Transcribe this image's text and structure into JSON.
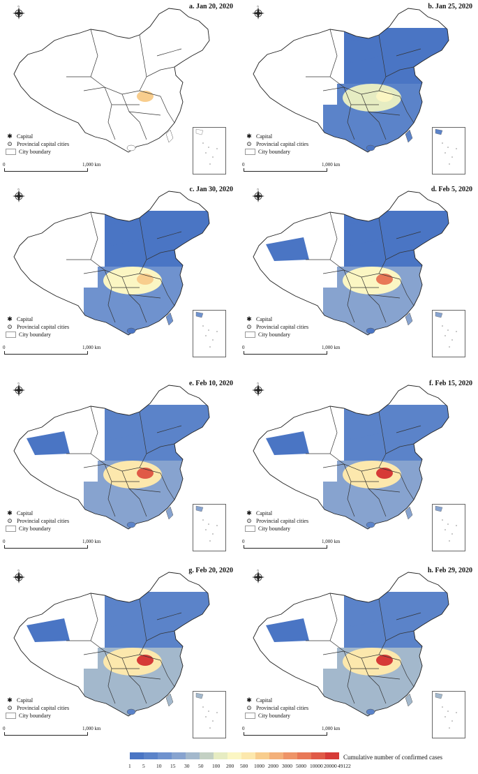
{
  "panels": [
    {
      "title": "a. Jan 20, 2020",
      "level": 0
    },
    {
      "title": "b. Jan 25, 2020",
      "level": 1
    },
    {
      "title": "c. Jan 30, 2020",
      "level": 2
    },
    {
      "title": "d. Feb 5, 2020",
      "level": 3
    },
    {
      "title": "e. Feb 10, 2020",
      "level": 4
    },
    {
      "title": "f. Feb 15, 2020",
      "level": 5
    },
    {
      "title": "g. Feb 20, 2020",
      "level": 6
    },
    {
      "title": "h. Feb 29, 2020",
      "level": 6
    }
  ],
  "legend": {
    "capital": "Capital",
    "provincial": "Provincial capital cities",
    "boundary": "City boundary",
    "scale_zero": "0",
    "scale_label": "1,000 km",
    "capital_symbol": "✱",
    "provincial_symbol": "⊙"
  },
  "compass": {
    "n": "N",
    "s": "S",
    "e": "E",
    "w": "W"
  },
  "colorbar": {
    "title": "Cumulative number of confirmed cases",
    "ticks": [
      "1",
      "5",
      "10",
      "15",
      "30",
      "50",
      "100",
      "200",
      "500",
      "1000",
      "2000",
      "3000",
      "5000",
      "10000",
      "20000",
      "49122"
    ],
    "colors": [
      "#4a75c4",
      "#5b83c9",
      "#6f92ce",
      "#87a3cf",
      "#a3b8cc",
      "#c3d0c3",
      "#e6ecc2",
      "#fbf6c3",
      "#fce8ad",
      "#f8cd8d",
      "#f3b07a",
      "#ee9468",
      "#e87857",
      "#e05a47",
      "#d63a37"
    ]
  }
}
